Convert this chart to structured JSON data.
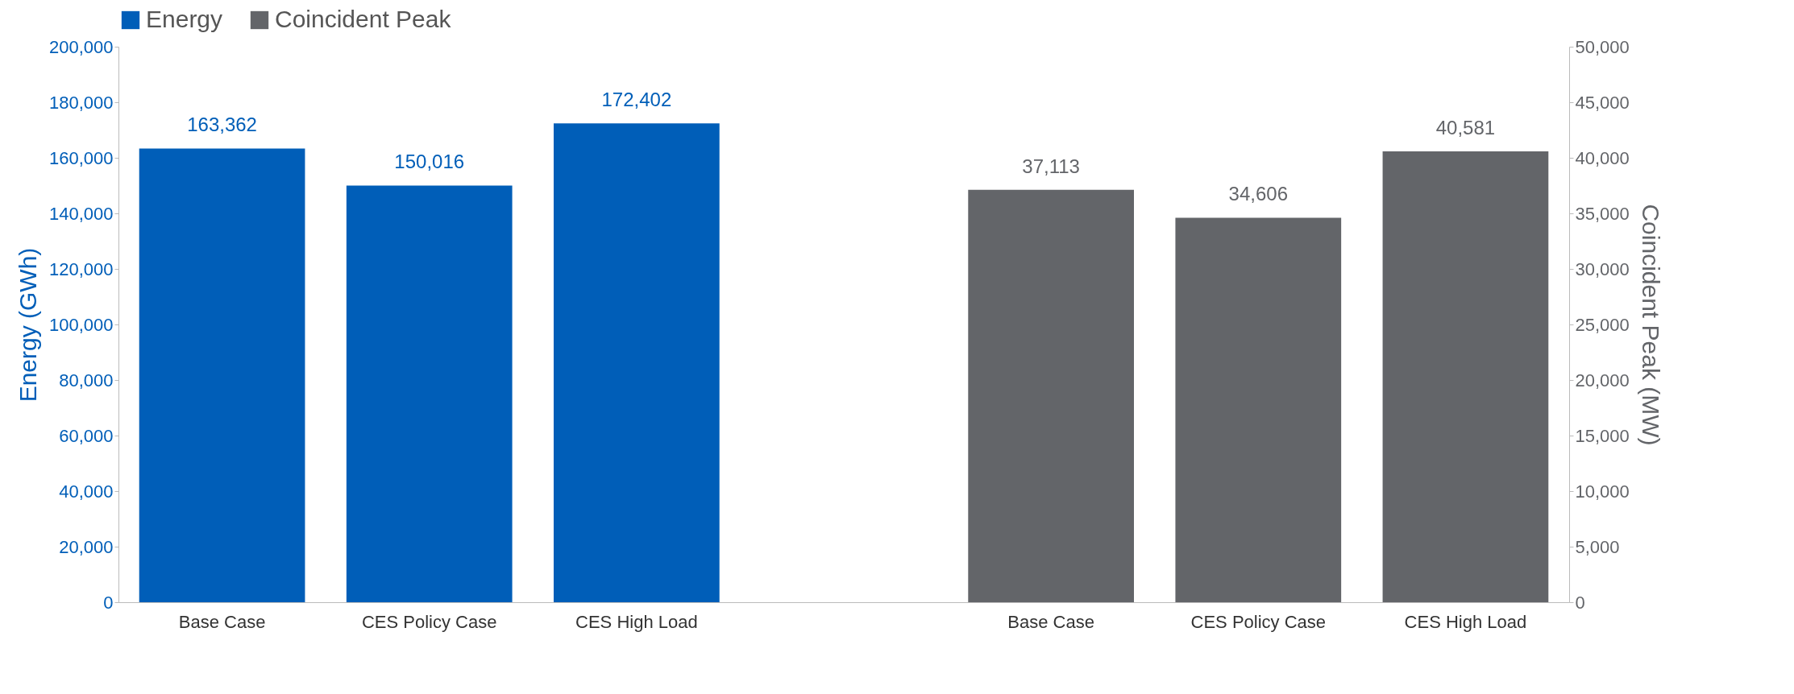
{
  "chart_data": {
    "type": "bar",
    "categories": [
      "Base Case",
      "CES Policy Case",
      "CES High Load",
      null,
      "Base Case",
      "CES Policy Case",
      "CES High Load"
    ],
    "ylabel": "Energy (GWh)",
    "y2label": "Coincident Peak (MW)",
    "series": [
      {
        "name": "Energy",
        "color": "#005eb8",
        "values": [
          163362,
          150016,
          172402,
          null,
          null,
          null,
          null
        ],
        "value_labels": [
          "163,362",
          "150,016",
          "172,402",
          null,
          null,
          null,
          null
        ]
      },
      {
        "name": "Coincident Peak",
        "color": "#636569",
        "axis": "y2",
        "values": [
          null,
          null,
          null,
          null,
          37113,
          34606,
          40581
        ],
        "value_labels": [
          null,
          null,
          null,
          null,
          "37,113",
          "34,606",
          "40,581"
        ]
      }
    ],
    "ylim": [
      0,
      200000
    ],
    "yticks": [
      0,
      {
        "value": 20000,
        "label": "20,000"
      },
      {
        "value": 40000,
        "label": "40,000"
      },
      {
        "value": 60000,
        "label": "60,000"
      },
      {
        "value": 80000,
        "label": "80,000"
      },
      {
        "value": 100000,
        "label": "100,000"
      },
      {
        "value": 120000,
        "label": "120,000"
      },
      {
        "value": 140000,
        "label": "140,000"
      },
      {
        "value": 160000,
        "label": "160,000"
      },
      {
        "value": 180000,
        "label": "180,000"
      },
      {
        "value": 200000,
        "label": "200,000"
      }
    ],
    "y2lim": [
      0,
      50000
    ],
    "y2ticks": [
      0,
      {
        "value": 5000,
        "label": "5,000"
      },
      {
        "value": 10000,
        "label": "10,000"
      },
      {
        "value": 15000,
        "label": "15,000"
      },
      {
        "value": 20000,
        "label": "20,000"
      },
      {
        "value": 25000,
        "label": "25,000"
      },
      {
        "value": 30000,
        "label": "30,000"
      },
      {
        "value": 35000,
        "label": "35,000"
      },
      {
        "value": 40000,
        "label": "40,000"
      },
      {
        "value": 45000,
        "label": "45,000"
      },
      {
        "value": 50000,
        "label": "50,000"
      }
    ],
    "grid": false,
    "legend": "top"
  }
}
